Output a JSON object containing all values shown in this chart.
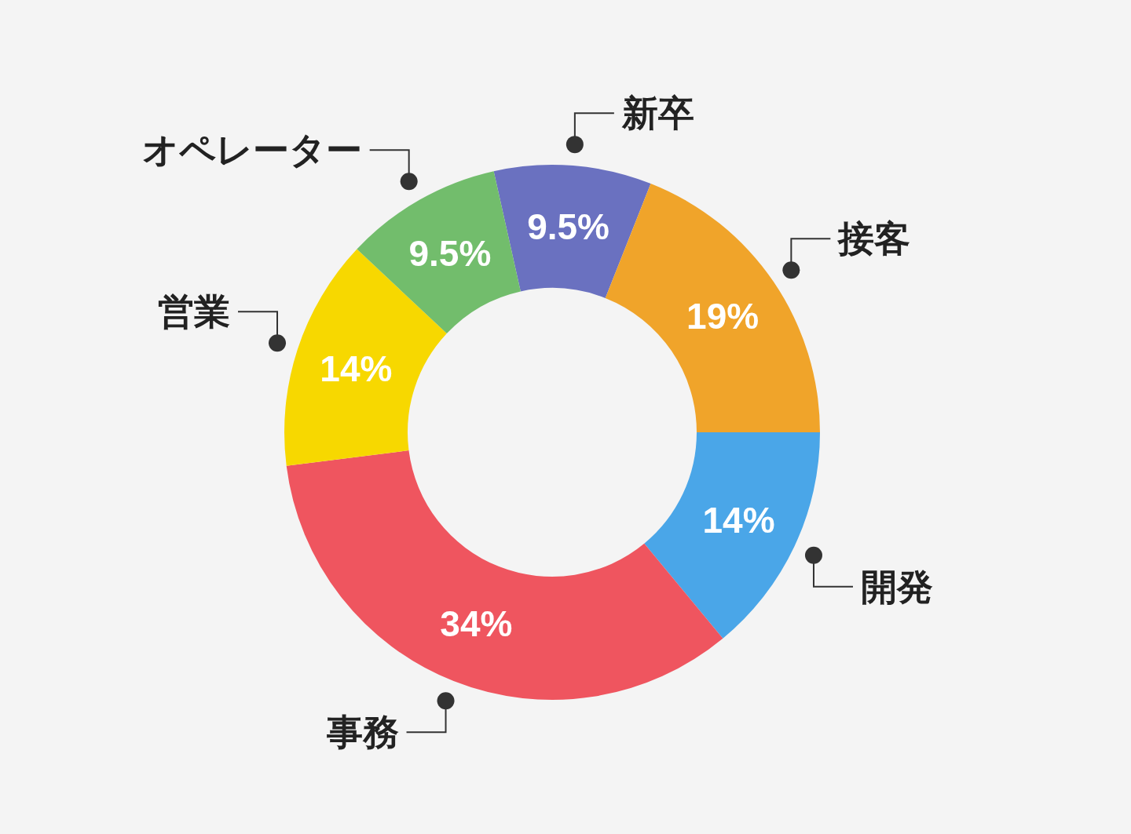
{
  "chart_data": {
    "type": "donut",
    "categories": [
      "新卒",
      "接客",
      "開発",
      "事務",
      "営業",
      "オペレーター"
    ],
    "values": [
      9.5,
      19,
      14,
      34,
      14,
      9.5
    ],
    "value_labels": [
      "9.5%",
      "19%",
      "14%",
      "34%",
      "14%",
      "9.5%"
    ],
    "colors": [
      "#6a71c0",
      "#f0a42a",
      "#4aa6e8",
      "#ef555f",
      "#f7d800",
      "#72bd6c"
    ]
  }
}
